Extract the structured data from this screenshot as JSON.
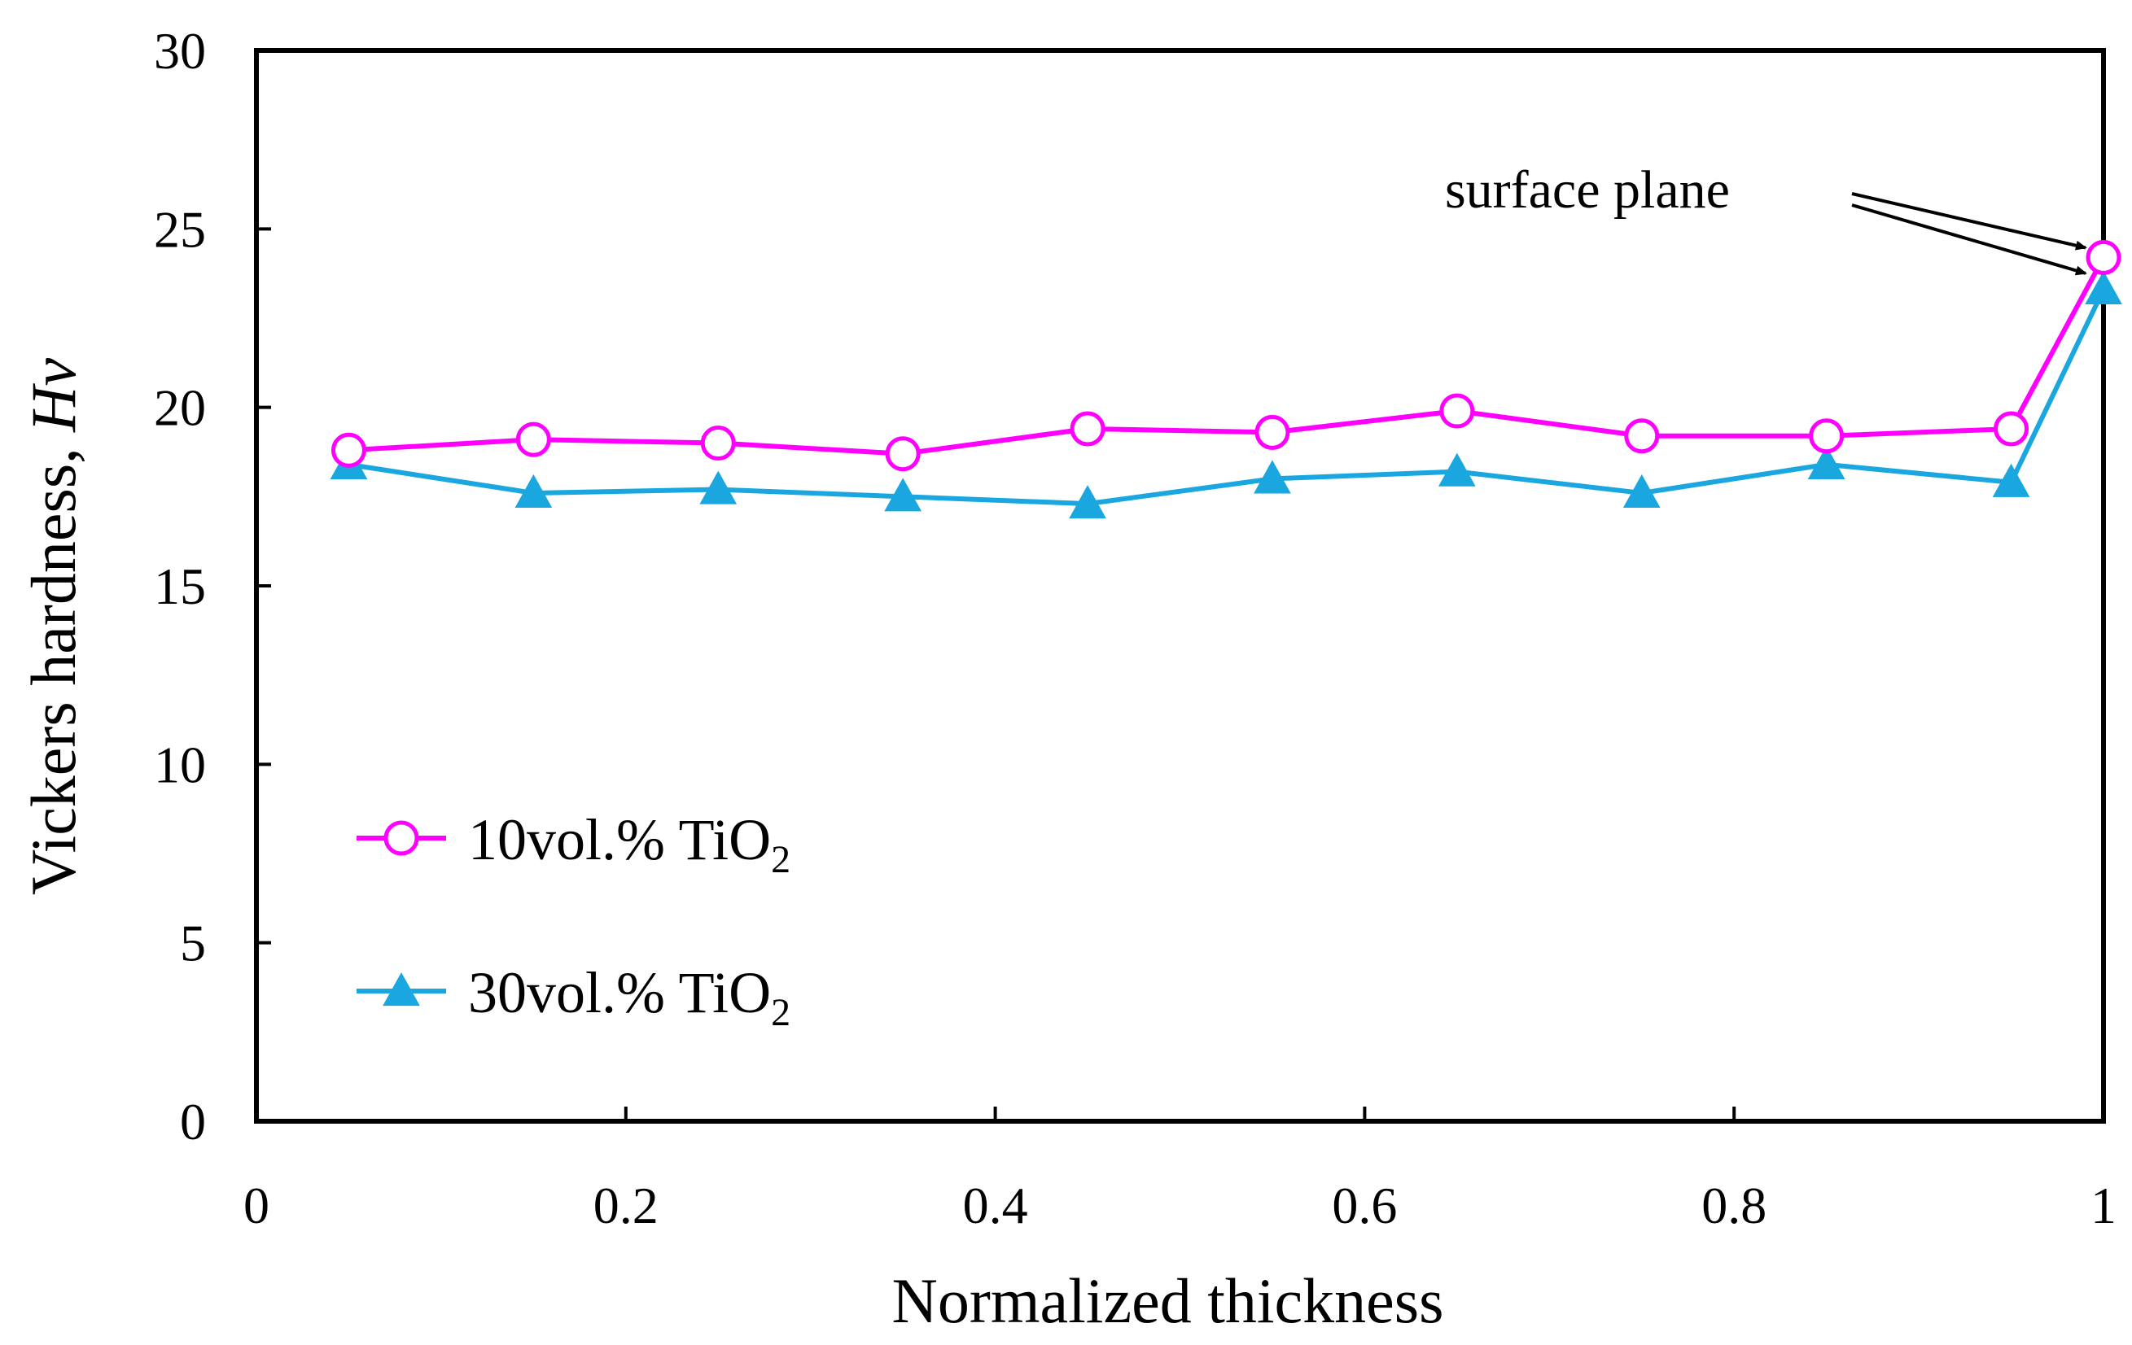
{
  "chart_data": {
    "type": "line",
    "title": "",
    "xlabel": "Normalized thickness",
    "ylabel": "Vickers hardness, ",
    "ylabel_symbol": "Hv",
    "xlim": [
      0,
      1
    ],
    "ylim": [
      0,
      30
    ],
    "x_ticks": [
      "0",
      "0.2",
      "0.4",
      "0.6",
      "0.8",
      "1"
    ],
    "x_tick_values": [
      0,
      0.2,
      0.4,
      0.6,
      0.8,
      1
    ],
    "y_ticks": [
      "0",
      "5",
      "10",
      "15",
      "20",
      "25",
      "30"
    ],
    "y_tick_values": [
      0,
      5,
      10,
      15,
      20,
      25,
      30
    ],
    "grid": false,
    "legend_position": "bottom-left",
    "series": [
      {
        "name": "10vol.%  TiO",
        "name_subscript": "2",
        "marker": "open-circle",
        "color": "#ff00ff",
        "x": [
          0.05,
          0.15,
          0.25,
          0.35,
          0.45,
          0.55,
          0.65,
          0.75,
          0.85,
          0.95,
          1.0
        ],
        "values": [
          18.8,
          19.1,
          19.0,
          18.7,
          19.4,
          19.3,
          19.9,
          19.2,
          19.2,
          19.4,
          24.2
        ]
      },
      {
        "name": "30vol.%  TiO",
        "name_subscript": "2",
        "marker": "filled-triangle",
        "color": "#1aa7e0",
        "x": [
          0.05,
          0.15,
          0.25,
          0.35,
          0.45,
          0.55,
          0.65,
          0.75,
          0.85,
          0.95,
          1.0
        ],
        "values": [
          18.4,
          17.6,
          17.7,
          17.5,
          17.3,
          18.0,
          18.2,
          17.6,
          18.4,
          17.9,
          23.3
        ]
      }
    ],
    "annotations": [
      {
        "text": "surface plane",
        "points_to": "surface-plane data points at normalized thickness 1"
      }
    ]
  }
}
